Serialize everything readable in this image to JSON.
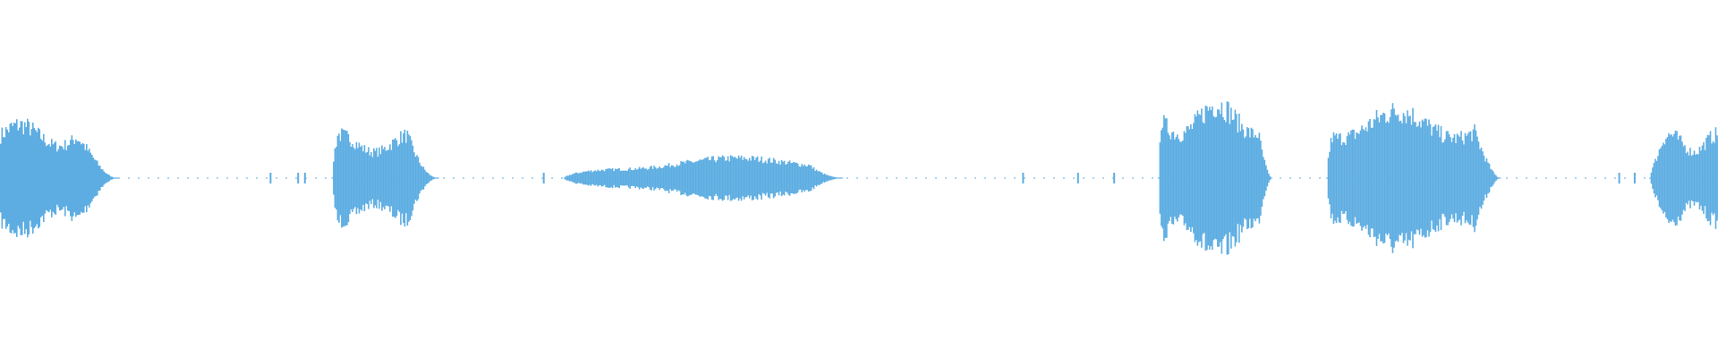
{
  "waveform": {
    "color": "#5dade2",
    "background": "#ffffff",
    "segments": [
      {
        "start": 0.0,
        "end": 0.068,
        "peak": 0.16,
        "fade_in": 0.0,
        "fade_out": 0.35
      },
      {
        "start": 0.193,
        "end": 0.255,
        "peak": 0.13,
        "fade_in": 0.05,
        "fade_out": 0.3
      },
      {
        "start": 0.328,
        "end": 0.49,
        "peak": 0.06,
        "fade_in": 0.4,
        "fade_out": 0.12
      },
      {
        "start": 0.674,
        "end": 0.74,
        "peak": 0.22,
        "fade_in": 0.02,
        "fade_out": 0.12
      },
      {
        "start": 0.772,
        "end": 0.873,
        "peak": 0.2,
        "fade_in": 0.03,
        "fade_out": 0.15
      },
      {
        "start": 0.96,
        "end": 1.0,
        "peak": 0.13,
        "fade_in": 0.2,
        "fade_out": 0.0
      }
    ],
    "clicks": [
      0.157,
      0.173,
      0.177,
      0.316,
      0.595,
      0.627,
      0.648,
      0.942,
      0.951
    ]
  }
}
